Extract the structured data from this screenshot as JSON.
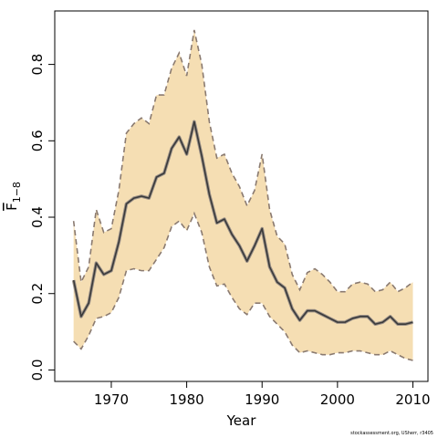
{
  "chart_data": {
    "type": "line",
    "xlabel": "Year",
    "ylabel_main": "F",
    "ylabel_sub": "1−8",
    "xlim": [
      1962.5,
      2012
    ],
    "ylim": [
      -0.03,
      0.94
    ],
    "xticks": [
      1970,
      1980,
      1990,
      2000,
      2010
    ],
    "yticks": [
      0.0,
      0.2,
      0.4,
      0.6,
      0.8
    ],
    "ytick_labels": [
      "0.0",
      "0.2",
      "0.4",
      "0.6",
      "0.8"
    ],
    "xtick_labels": [
      "1970",
      "1980",
      "1990",
      "2000",
      "2010"
    ],
    "colors": {
      "band": "#f5deb3",
      "bound_line": "#8a7a70",
      "estimate_line": "#3a3a3a"
    },
    "x": [
      1965,
      1966,
      1967,
      1968,
      1969,
      1970,
      1971,
      1972,
      1973,
      1974,
      1975,
      1976,
      1977,
      1978,
      1979,
      1980,
      1981,
      1982,
      1983,
      1984,
      1985,
      1986,
      1987,
      1988,
      1989,
      1990,
      1991,
      1992,
      1993,
      1994,
      1995,
      1996,
      1997,
      1998,
      1999,
      2000,
      2001,
      2002,
      2003,
      2004,
      2005,
      2006,
      2007,
      2008,
      2009,
      2010
    ],
    "series": [
      {
        "role": "estimate",
        "values": [
          0.235,
          0.14,
          0.175,
          0.28,
          0.25,
          0.26,
          0.335,
          0.435,
          0.45,
          0.455,
          0.45,
          0.505,
          0.515,
          0.58,
          0.61,
          0.565,
          0.65,
          0.56,
          0.46,
          0.385,
          0.395,
          0.355,
          0.325,
          0.285,
          0.325,
          0.37,
          0.27,
          0.23,
          0.215,
          0.16,
          0.13,
          0.155,
          0.155,
          0.145,
          0.135,
          0.125,
          0.125,
          0.135,
          0.14,
          0.14,
          0.12,
          0.125,
          0.14,
          0.12,
          0.12,
          0.125
        ]
      },
      {
        "role": "upper",
        "values": [
          0.39,
          0.23,
          0.27,
          0.42,
          0.36,
          0.37,
          0.47,
          0.62,
          0.645,
          0.66,
          0.645,
          0.72,
          0.72,
          0.79,
          0.83,
          0.77,
          0.89,
          0.8,
          0.65,
          0.555,
          0.565,
          0.515,
          0.48,
          0.43,
          0.47,
          0.565,
          0.42,
          0.35,
          0.33,
          0.25,
          0.21,
          0.255,
          0.265,
          0.25,
          0.23,
          0.205,
          0.205,
          0.225,
          0.23,
          0.225,
          0.205,
          0.21,
          0.23,
          0.205,
          0.215,
          0.23
        ]
      },
      {
        "role": "lower",
        "values": [
          0.075,
          0.055,
          0.09,
          0.135,
          0.14,
          0.15,
          0.19,
          0.26,
          0.265,
          0.26,
          0.26,
          0.29,
          0.32,
          0.375,
          0.39,
          0.365,
          0.41,
          0.36,
          0.27,
          0.22,
          0.225,
          0.19,
          0.16,
          0.145,
          0.175,
          0.175,
          0.14,
          0.12,
          0.1,
          0.065,
          0.045,
          0.05,
          0.045,
          0.04,
          0.04,
          0.045,
          0.045,
          0.05,
          0.05,
          0.045,
          0.04,
          0.04,
          0.05,
          0.04,
          0.03,
          0.025
        ]
      }
    ]
  },
  "footer": {
    "credit": "stockassessment.org, USherr, r3405"
  }
}
